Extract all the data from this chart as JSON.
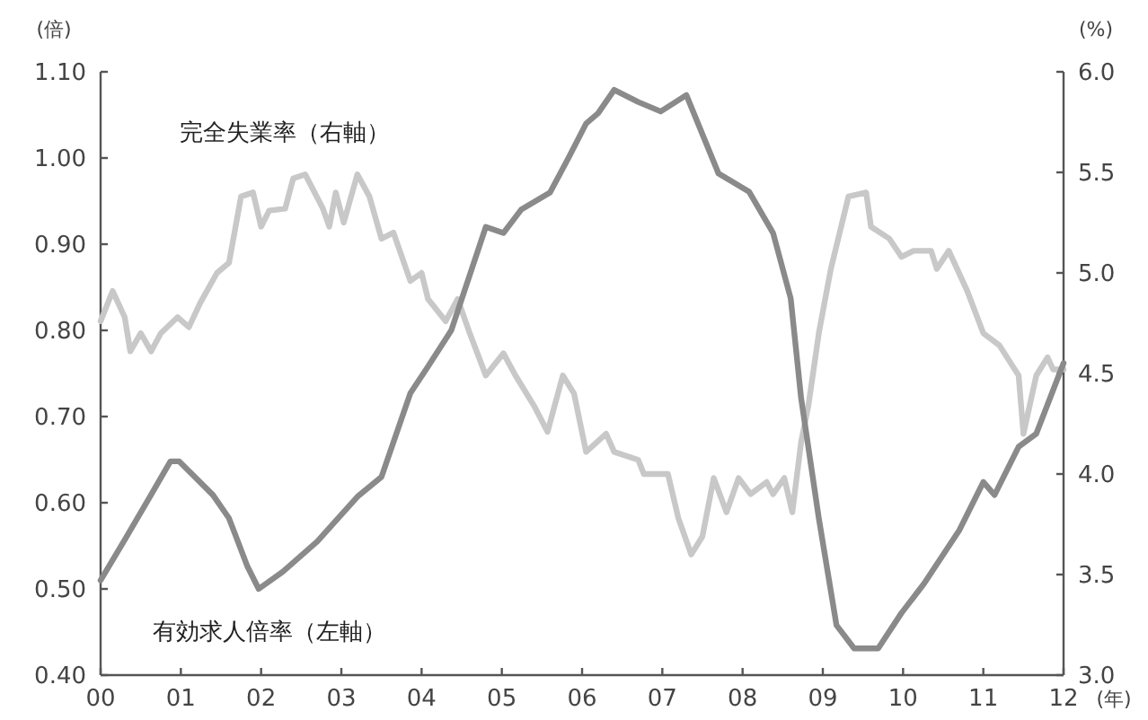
{
  "chart_data": {
    "type": "line",
    "xlabel": "(年)",
    "ylabel": "(倍)",
    "y2label": "(%)",
    "xlim": [
      0,
      12
    ],
    "xticks": [
      {
        "value": 0,
        "label": "00"
      },
      {
        "value": 1,
        "label": "01"
      },
      {
        "value": 2,
        "label": "02"
      },
      {
        "value": 3,
        "label": "03"
      },
      {
        "value": 4,
        "label": "04"
      },
      {
        "value": 5,
        "label": "05"
      },
      {
        "value": 6,
        "label": "06"
      },
      {
        "value": 7,
        "label": "07"
      },
      {
        "value": 8,
        "label": "08"
      },
      {
        "value": 9,
        "label": "09"
      },
      {
        "value": 10,
        "label": "10"
      },
      {
        "value": 11,
        "label": "11"
      },
      {
        "value": 12,
        "label": "12"
      }
    ],
    "ylim": [
      0.4,
      1.1
    ],
    "yticks": [
      {
        "value": 0.4,
        "label": "0.40"
      },
      {
        "value": 0.5,
        "label": "0.50"
      },
      {
        "value": 0.6,
        "label": "0.60"
      },
      {
        "value": 0.7,
        "label": "0.70"
      },
      {
        "value": 0.8,
        "label": "0.80"
      },
      {
        "value": 0.9,
        "label": "0.90"
      },
      {
        "value": 1.0,
        "label": "1.00"
      },
      {
        "value": 1.1,
        "label": "1.10"
      }
    ],
    "y2lim": [
      3.0,
      6.0
    ],
    "y2ticks": [
      {
        "value": 3.0,
        "label": "3.0"
      },
      {
        "value": 3.5,
        "label": "3.5"
      },
      {
        "value": 4.0,
        "label": "4.0"
      },
      {
        "value": 4.5,
        "label": "4.5"
      },
      {
        "value": 5.0,
        "label": "5.0"
      },
      {
        "value": 5.5,
        "label": "5.5"
      },
      {
        "value": 6.0,
        "label": "6.0"
      }
    ],
    "grid": false,
    "legend": false,
    "marker": "none",
    "line_style": "solid",
    "series": [
      {
        "name": "完全失業率（右軸）",
        "color": "#c8c8c8",
        "axis": "y2",
        "x": [
          0,
          0.15,
          0.3,
          0.37,
          0.5,
          0.63,
          0.75,
          0.96,
          1.1,
          1.24,
          1.45,
          1.6,
          1.75,
          1.9,
          2.0,
          2.1,
          2.3,
          2.4,
          2.55,
          2.77,
          2.85,
          2.93,
          3.03,
          3.2,
          3.35,
          3.5,
          3.65,
          3.86,
          4.0,
          4.08,
          4.3,
          4.45,
          4.6,
          4.8,
          5.02,
          5.17,
          5.4,
          5.57,
          5.76,
          5.9,
          6.05,
          6.3,
          6.4,
          6.7,
          6.77,
          7.07,
          7.2,
          7.36,
          7.5,
          7.64,
          7.8,
          7.95,
          8.1,
          8.3,
          8.38,
          8.52,
          8.62,
          8.73,
          8.82,
          8.95,
          9.1,
          9.32,
          9.54,
          9.6,
          9.83,
          9.98,
          10.13,
          10.35,
          10.42,
          10.57,
          10.8,
          11.0,
          11.2,
          11.44,
          11.5,
          11.66,
          11.8,
          11.87,
          12.0
        ],
        "values": [
          4.76,
          4.91,
          4.78,
          4.61,
          4.7,
          4.61,
          4.7,
          4.78,
          4.73,
          4.85,
          5.0,
          5.05,
          5.38,
          5.4,
          5.23,
          5.31,
          5.32,
          5.47,
          5.49,
          5.32,
          5.23,
          5.4,
          5.25,
          5.49,
          5.38,
          5.17,
          5.2,
          4.96,
          5.0,
          4.87,
          4.76,
          4.87,
          4.7,
          4.49,
          4.6,
          4.49,
          4.34,
          4.21,
          4.49,
          4.4,
          4.11,
          4.2,
          4.11,
          4.07,
          4.0,
          4.0,
          3.78,
          3.6,
          3.69,
          3.98,
          3.81,
          3.98,
          3.9,
          3.96,
          3.9,
          3.98,
          3.81,
          4.16,
          4.34,
          4.7,
          5.02,
          5.38,
          5.4,
          5.23,
          5.17,
          5.08,
          5.11,
          5.11,
          5.02,
          5.11,
          4.91,
          4.7,
          4.64,
          4.49,
          4.2,
          4.49,
          4.58,
          4.52,
          4.52
        ]
      },
      {
        "name": "有効求人倍率（左軸）",
        "color": "#8a8a8a",
        "x": [
          0,
          0.3,
          0.59,
          0.87,
          0.98,
          1.4,
          1.6,
          1.83,
          1.97,
          2.27,
          2.7,
          3.2,
          3.5,
          3.86,
          4.08,
          4.37,
          4.8,
          5.02,
          5.24,
          5.6,
          5.83,
          6.05,
          6.2,
          6.4,
          6.7,
          6.98,
          7.3,
          7.7,
          8.08,
          8.38,
          8.6,
          8.73,
          8.95,
          9.17,
          9.39,
          9.69,
          9.98,
          10.26,
          10.7,
          11.0,
          11.14,
          11.44,
          11.66,
          12.0
        ],
        "values": [
          0.51,
          0.557,
          0.603,
          0.648,
          0.648,
          0.609,
          0.582,
          0.526,
          0.5,
          0.52,
          0.555,
          0.607,
          0.63,
          0.727,
          0.758,
          0.8,
          0.92,
          0.913,
          0.94,
          0.96,
          1.0,
          1.04,
          1.052,
          1.079,
          1.065,
          1.054,
          1.073,
          0.982,
          0.961,
          0.913,
          0.837,
          0.721,
          0.582,
          0.458,
          0.431,
          0.431,
          0.472,
          0.506,
          0.568,
          0.624,
          0.609,
          0.665,
          0.68,
          0.762
        ]
      }
    ]
  }
}
